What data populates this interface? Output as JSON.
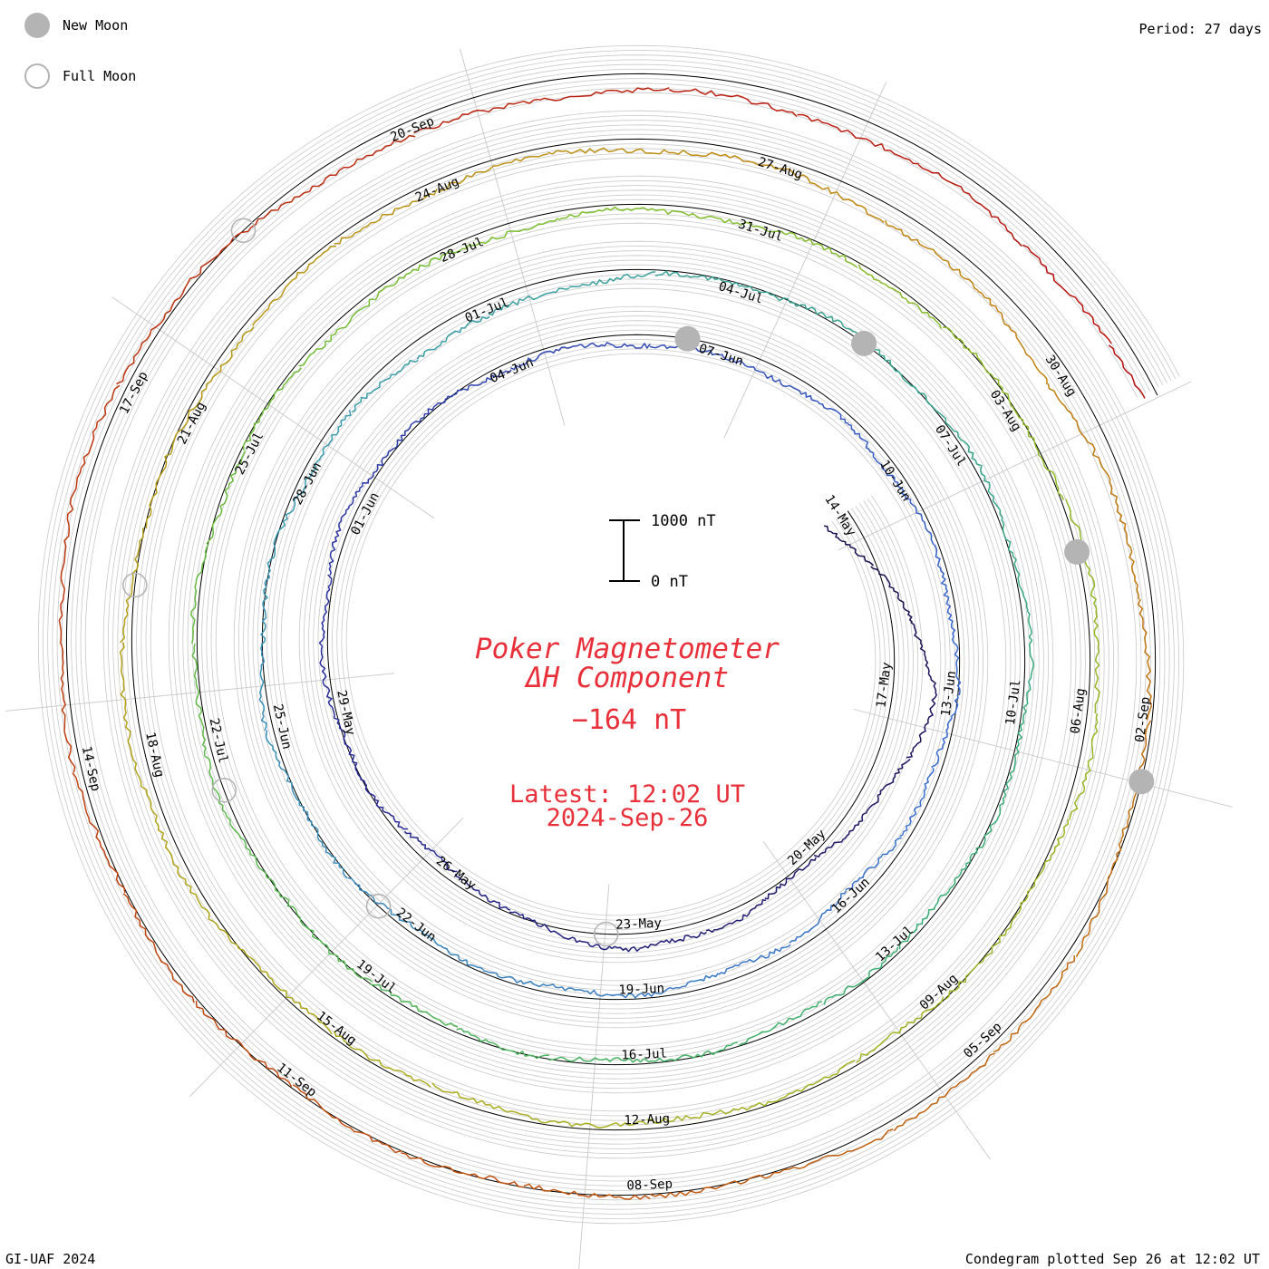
{
  "header": {
    "period": "Period: 27 days",
    "legend": [
      {
        "name": "new-moon",
        "label": "New Moon"
      },
      {
        "name": "full-moon",
        "label": "Full Moon"
      }
    ]
  },
  "footer": {
    "credit": "GI-UAF 2024",
    "plotted": "Condegram plotted Sep 26 at 12:02 UT"
  },
  "scale_bar": {
    "top_label": "1000 nT",
    "bottom_label": "0 nT"
  },
  "center": {
    "title_line1": "Poker Magnetometer",
    "title_line2": "ΔH Component",
    "value": "−164 nT",
    "latest_time": "Latest: 12:02 UT",
    "latest_date": "2024-Sep-26"
  },
  "colors": {
    "accent": "#e8303a",
    "grid": "#c8c8c8",
    "moon": "#b4b4b4",
    "cycles": [
      "#1a0d4a",
      "#2a2d9a",
      "#3a6ad0",
      "#3a9ab0",
      "#3ab070",
      "#7cc030",
      "#aab020",
      "#c08a10",
      "#c04a10",
      "#b81010"
    ]
  },
  "chart_data": {
    "type": "line",
    "chart_style": "condegram spiral",
    "period_days": 27,
    "start_date": "2024-05-14",
    "end_date": "2024-09-26",
    "scale_nT": 1000,
    "date_labels": [
      "14-May",
      "17-May",
      "20-May",
      "23-May",
      "26-May",
      "29-May",
      "01-Jun",
      "04-Jun",
      "07-Jun",
      "10-Jun",
      "13-Jun",
      "16-Jun",
      "19-Jun",
      "22-Jun",
      "25-Jun",
      "28-Jun",
      "01-Jul",
      "04-Jul",
      "07-Jul",
      "10-Jul",
      "13-Jul",
      "16-Jul",
      "19-Jul",
      "22-Jul",
      "25-Jul",
      "28-Jul",
      "31-Jul",
      "03-Aug",
      "06-Aug",
      "09-Aug",
      "12-Aug",
      "15-Aug",
      "18-Aug",
      "21-Aug",
      "24-Aug",
      "27-Aug",
      "30-Aug",
      "02-Sep",
      "05-Sep",
      "08-Sep",
      "11-Sep",
      "14-Sep",
      "17-Sep",
      "20-Sep"
    ],
    "new_moon_dates": [
      "2024-06-06",
      "2024-07-05",
      "2024-08-04",
      "2024-09-02"
    ],
    "full_moon_dates": [
      "2024-05-23",
      "2024-06-22",
      "2024-07-21",
      "2024-08-19",
      "2024-09-18"
    ],
    "series": [
      {
        "date": "14-May",
        "value": 500
      },
      {
        "date": "17-May",
        "value": -800
      },
      {
        "date": "20-May",
        "value": -50
      },
      {
        "date": "23-May",
        "value": -300
      },
      {
        "date": "26-May",
        "value": 200
      },
      {
        "date": "29-May",
        "value": -50
      },
      {
        "date": "01-Jun",
        "value": -150
      },
      {
        "date": "04-Jun",
        "value": 100
      },
      {
        "date": "07-Jun",
        "value": 200
      },
      {
        "date": "10-Jun",
        "value": 150
      },
      {
        "date": "13-Jun",
        "value": 50
      },
      {
        "date": "16-Jun",
        "value": 250
      },
      {
        "date": "19-Jun",
        "value": 100
      },
      {
        "date": "22-Jun",
        "value": 80
      },
      {
        "date": "25-Jun",
        "value": -100
      },
      {
        "date": "28-Jun",
        "value": 100
      },
      {
        "date": "01-Jul",
        "value": 300
      },
      {
        "date": "04-Jul",
        "value": 0
      },
      {
        "date": "07-Jul",
        "value": -50
      },
      {
        "date": "10-Jul",
        "value": -100
      },
      {
        "date": "13-Jul",
        "value": 100
      },
      {
        "date": "16-Jul",
        "value": 50
      },
      {
        "date": "19-Jul",
        "value": 50
      },
      {
        "date": "22-Jul",
        "value": -120
      },
      {
        "date": "25-Jul",
        "value": 50
      },
      {
        "date": "28-Jul",
        "value": 150
      },
      {
        "date": "31-Jul",
        "value": 100
      },
      {
        "date": "03-Aug",
        "value": 0
      },
      {
        "date": "06-Aug",
        "value": -200
      },
      {
        "date": "09-Aug",
        "value": 50
      },
      {
        "date": "12-Aug",
        "value": 100
      },
      {
        "date": "15-Aug",
        "value": 100
      },
      {
        "date": "18-Aug",
        "value": -250
      },
      {
        "date": "21-Aug",
        "value": 80
      },
      {
        "date": "24-Aug",
        "value": 150
      },
      {
        "date": "27-Aug",
        "value": 200
      },
      {
        "date": "30-Aug",
        "value": 400
      },
      {
        "date": "02-Sep",
        "value": 100
      },
      {
        "date": "05-Sep",
        "value": -200
      },
      {
        "date": "08-Sep",
        "value": 0
      },
      {
        "date": "11-Sep",
        "value": 0
      },
      {
        "date": "14-Sep",
        "value": -100
      },
      {
        "date": "17-Sep",
        "value": -200
      },
      {
        "date": "20-Sep",
        "value": 300
      }
    ]
  }
}
